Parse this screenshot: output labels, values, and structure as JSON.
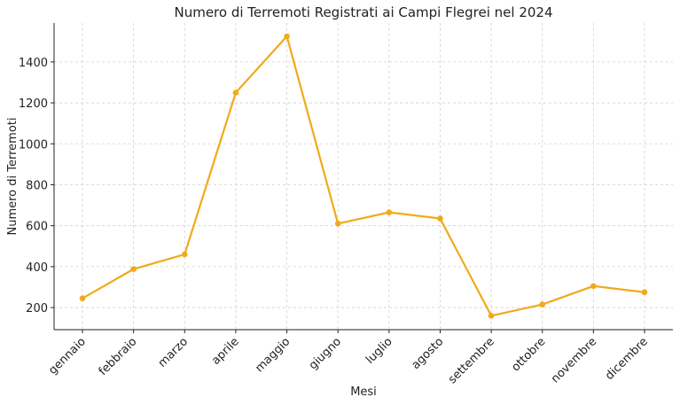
{
  "chart_data": {
    "type": "line",
    "title": "Numero di Terremoti Registrati ai Campi Flegrei nel 2024",
    "x_label": "Mesi",
    "y_label": "Numero di Terremoti",
    "categories": [
      "gennaio",
      "febbraio",
      "marzo",
      "aprile",
      "maggio",
      "giugno",
      "luglio",
      "agosto",
      "settembre",
      "ottobre",
      "novembre",
      "dicembre"
    ],
    "values": [
      245,
      388,
      460,
      1250,
      1525,
      610,
      665,
      635,
      160,
      215,
      305,
      275
    ],
    "color": "#f0aa1a",
    "ylim": [
      92,
      1590
    ],
    "yticks": [
      200,
      400,
      600,
      800,
      1000,
      1200,
      1400
    ],
    "grid": true
  }
}
